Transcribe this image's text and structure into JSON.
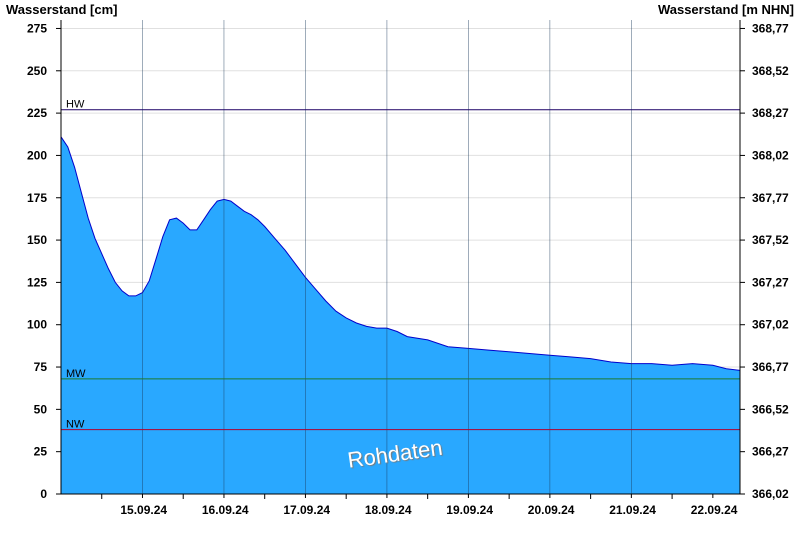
{
  "chart_data": {
    "type": "area",
    "title": "",
    "ylabel": "Wasserstand [cm]",
    "ylabel_right": "Wasserstand [m NHN]",
    "ylim": [
      0,
      280
    ],
    "yticks": [
      0,
      25,
      50,
      75,
      100,
      125,
      150,
      175,
      200,
      225,
      250,
      275
    ],
    "right_tick_labels": [
      "366,02",
      "366,27",
      "366,52",
      "366,77",
      "367,02",
      "367,27",
      "367,52",
      "367,77",
      "368,02",
      "368,27",
      "368,52",
      "368,77"
    ],
    "xlim": [
      "2024-09-14T12:00",
      "2024-09-22T20:00"
    ],
    "x_tick_labels": [
      "15.09.24",
      "16.09.24",
      "17.09.24",
      "18.09.24",
      "19.09.24",
      "20.09.24",
      "21.09.24",
      "22.09.24"
    ],
    "series_color": "#29a8ff",
    "series_edge_color": "#0000cc",
    "series": [
      {
        "x": [
          "2024-09-14T12:00",
          "2024-09-14T14:00",
          "2024-09-14T16:00",
          "2024-09-14T18:00",
          "2024-09-14T20:00",
          "2024-09-14T22:00",
          "2024-09-15T00:00",
          "2024-09-15T02:00",
          "2024-09-15T04:00",
          "2024-09-15T06:00",
          "2024-09-15T08:00",
          "2024-09-15T10:00",
          "2024-09-15T12:00",
          "2024-09-15T14:00",
          "2024-09-15T16:00",
          "2024-09-15T18:00",
          "2024-09-15T20:00",
          "2024-09-15T22:00",
          "2024-09-16T00:00",
          "2024-09-16T02:00",
          "2024-09-16T04:00",
          "2024-09-16T06:00",
          "2024-09-16T08:00",
          "2024-09-16T10:00",
          "2024-09-16T12:00",
          "2024-09-16T14:00",
          "2024-09-16T16:00",
          "2024-09-16T18:00",
          "2024-09-16T20:00",
          "2024-09-16T22:00",
          "2024-09-17T00:00",
          "2024-09-17T03:00",
          "2024-09-17T06:00",
          "2024-09-17T09:00",
          "2024-09-17T12:00",
          "2024-09-17T15:00",
          "2024-09-17T18:00",
          "2024-09-17T21:00",
          "2024-09-18T00:00",
          "2024-09-18T03:00",
          "2024-09-18T06:00",
          "2024-09-18T09:00",
          "2024-09-18T12:00",
          "2024-09-18T15:00",
          "2024-09-18T18:00",
          "2024-09-18T21:00",
          "2024-09-19T00:00",
          "2024-09-19T06:00",
          "2024-09-19T12:00",
          "2024-09-19T18:00",
          "2024-09-20T00:00",
          "2024-09-20T06:00",
          "2024-09-20T12:00",
          "2024-09-20T18:00",
          "2024-09-21T00:00",
          "2024-09-21T06:00",
          "2024-09-21T12:00",
          "2024-09-21T18:00",
          "2024-09-22T00:00",
          "2024-09-22T06:00",
          "2024-09-22T12:00",
          "2024-09-22T16:00",
          "2024-09-22T20:00"
        ],
        "values": [
          211,
          205,
          193,
          178,
          163,
          151,
          142,
          133,
          125,
          120,
          117,
          117,
          119,
          126,
          139,
          152,
          162,
          163,
          160,
          156,
          156,
          162,
          168,
          173,
          174,
          173,
          170,
          167,
          165,
          162,
          158,
          151,
          144,
          136,
          128,
          121,
          114,
          108,
          104,
          101,
          99,
          98,
          98,
          96,
          93,
          92,
          91,
          87,
          86,
          85,
          84,
          83,
          82,
          81,
          80,
          78,
          77,
          77,
          76,
          77,
          76,
          74,
          73
        ]
      }
    ],
    "reference_lines": [
      {
        "label": "HW",
        "value": 227,
        "color": "#1a0066"
      },
      {
        "label": "MW",
        "value": 68,
        "color": "#1e7a2e"
      },
      {
        "label": "NW",
        "value": 38,
        "color": "#b3002d"
      }
    ],
    "annotations": [
      "Rohdaten"
    ]
  }
}
